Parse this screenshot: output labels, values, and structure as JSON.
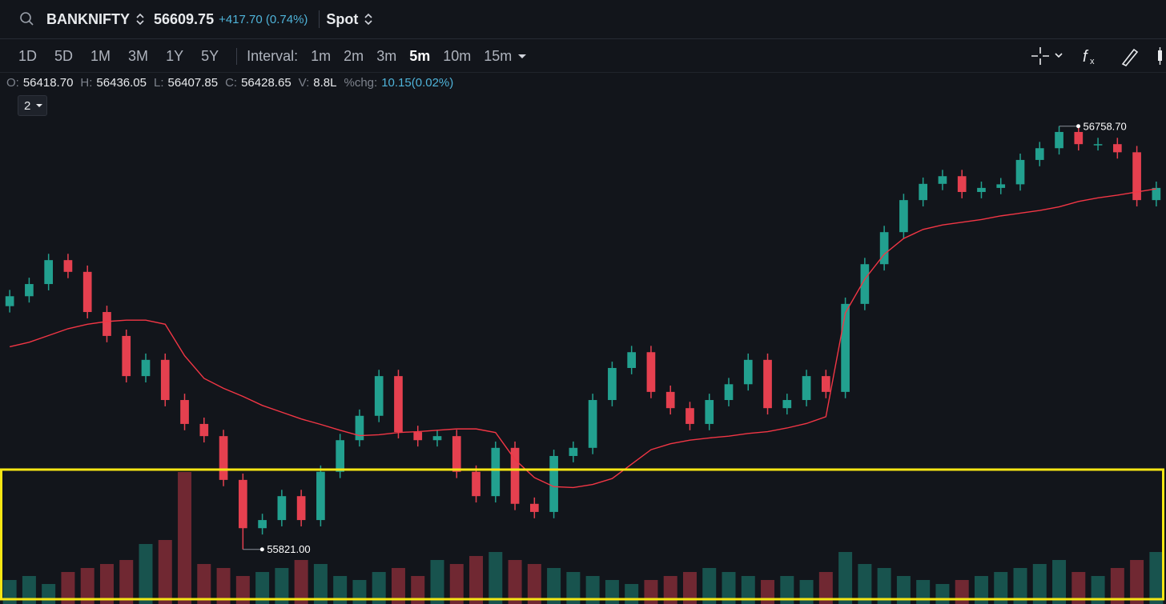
{
  "header": {
    "symbol": "BANKNIFTY",
    "price": "56609.75",
    "change": "+417.70 (0.74%)",
    "mode": "Spot"
  },
  "toolbar": {
    "ranges": [
      "1D",
      "5D",
      "1M",
      "3M",
      "1Y",
      "5Y"
    ],
    "interval_label": "Interval:",
    "intervals": [
      "1m",
      "2m",
      "3m",
      "5m",
      "10m",
      "15m"
    ],
    "active_interval": "5m"
  },
  "ohlc": {
    "o_label": "O:",
    "o": "56418.70",
    "h_label": "H:",
    "h": "56436.05",
    "l_label": "L:",
    "l": "56407.85",
    "c_label": "C:",
    "c": "56428.65",
    "v_label": "V:",
    "v": "8.8L",
    "chg_label": "%chg:",
    "chg": "10.15(0.02%)"
  },
  "pane_selector": "2",
  "chart_data": {
    "type": "candlestick",
    "open": [
      56360,
      56382,
      56409,
      56462,
      56436,
      56347,
      56294,
      56205,
      56241,
      56152,
      56099,
      56072,
      55975,
      55868,
      55886,
      55939,
      55886,
      55993,
      56063,
      56117,
      56205,
      56081,
      56063,
      56072,
      55993,
      55939,
      56046,
      55922,
      55904,
      56028,
      56046,
      56152,
      56223,
      56258,
      56170,
      56134,
      56099,
      56152,
      56187,
      56241,
      56134,
      56152,
      56205,
      56170,
      56365,
      56453,
      56524,
      56595,
      56631,
      56648,
      56613,
      56622,
      56630,
      56684,
      56710,
      56746,
      56719,
      56719,
      56701,
      56595
    ],
    "high": [
      56396,
      56423,
      56476,
      56476,
      56450,
      56361,
      56308,
      56255,
      56255,
      56166,
      56113,
      56086,
      55989,
      55900,
      55953,
      55953,
      56007,
      56077,
      56131,
      56219,
      56219,
      56095,
      56086,
      56086,
      56007,
      56060,
      56060,
      55936,
      56042,
      56060,
      56166,
      56237,
      56272,
      56272,
      56184,
      56148,
      56166,
      56201,
      56255,
      56255,
      56166,
      56219,
      56219,
      56379,
      56467,
      56538,
      56609,
      56645,
      56662,
      56662,
      56636,
      56644,
      56698,
      56724,
      56758.7,
      56758,
      56733,
      56733,
      56715,
      56636
    ],
    "low": [
      56346,
      56368,
      56395,
      56422,
      56333,
      56280,
      56191,
      56191,
      56138,
      56085,
      56058,
      55961,
      55821,
      55854,
      55872,
      55872,
      55872,
      55979,
      56049,
      56103,
      56067,
      56049,
      56049,
      55979,
      55925,
      55925,
      55908,
      55890,
      55890,
      56014,
      56032,
      56138,
      56209,
      56156,
      56120,
      56085,
      56085,
      56138,
      56173,
      56120,
      56120,
      56138,
      56156,
      56156,
      56351,
      56439,
      56510,
      56581,
      56617,
      56599,
      56599,
      56608,
      56616,
      56670,
      56696,
      56705,
      56705,
      56687,
      56581,
      56581
    ],
    "close": [
      56382,
      56409,
      56462,
      56436,
      56347,
      56294,
      56205,
      56241,
      56152,
      56099,
      56072,
      55975,
      55868,
      55886,
      55939,
      55886,
      55993,
      56063,
      56117,
      56205,
      56081,
      56063,
      56072,
      55993,
      55939,
      56046,
      55922,
      55904,
      56028,
      56046,
      56152,
      56223,
      56258,
      56170,
      56134,
      56099,
      56152,
      56187,
      56241,
      56134,
      56152,
      56205,
      56170,
      56365,
      56453,
      56524,
      56595,
      56631,
      56648,
      56613,
      56622,
      56630,
      56684,
      56710,
      56746,
      56719,
      56719,
      56701,
      56595,
      56622
    ],
    "volume": [
      12,
      14,
      10,
      16,
      18,
      20,
      22,
      30,
      32,
      66,
      20,
      18,
      14,
      16,
      18,
      22,
      20,
      14,
      12,
      16,
      18,
      14,
      22,
      20,
      24,
      26,
      22,
      20,
      18,
      16,
      14,
      12,
      10,
      12,
      14,
      16,
      18,
      16,
      14,
      12,
      14,
      12,
      16,
      26,
      20,
      18,
      14,
      12,
      10,
      12,
      14,
      16,
      18,
      20,
      22,
      16,
      14,
      18,
      22,
      26
    ],
    "ema": [
      56270,
      56280,
      56295,
      56310,
      56320,
      56326,
      56329,
      56329,
      56320,
      56250,
      56200,
      56178,
      56160,
      56140,
      56125,
      56110,
      56098,
      56085,
      56073,
      56075,
      56080,
      56082,
      56085,
      56088,
      56088,
      56080,
      56020,
      55980,
      55960,
      55958,
      55965,
      55978,
      56010,
      56042,
      56055,
      56063,
      56068,
      56072,
      56078,
      56082,
      56090,
      56100,
      56115,
      56345,
      56420,
      56475,
      56510,
      56530,
      56540,
      56546,
      56552,
      56560,
      56566,
      56572,
      56580,
      56592,
      56600,
      56606,
      56613,
      56620
    ],
    "ylim": [
      55700,
      56870
    ],
    "up_color": "#22a08f",
    "down_color": "#e5404f",
    "ema_color": "#f23645",
    "high_label": "56758.70",
    "low_label": "55821.00"
  }
}
